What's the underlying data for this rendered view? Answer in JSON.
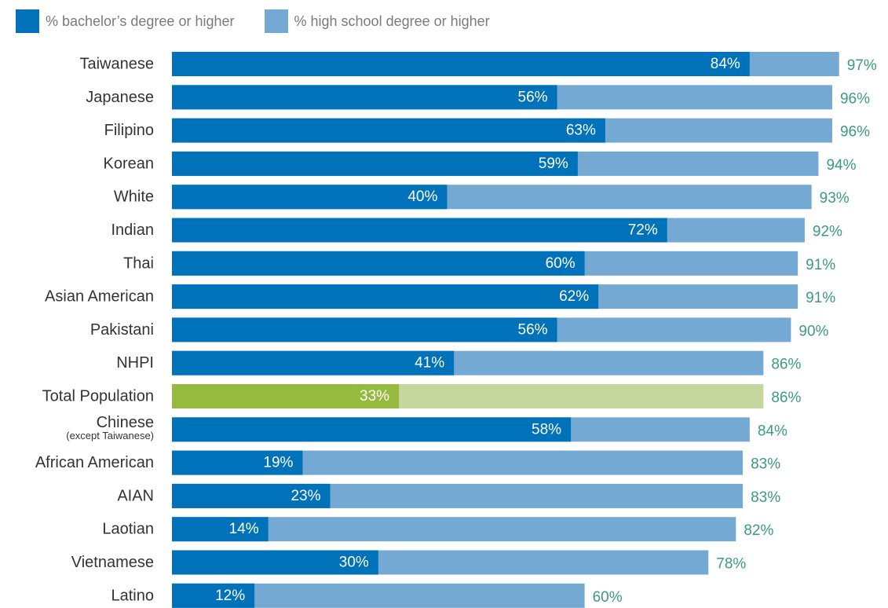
{
  "legend": {
    "items": [
      {
        "label": "% bachelor’s degree or higher",
        "color": "#0072BA"
      },
      {
        "label": "% high school degree or higher",
        "color": "#74A9D4"
      }
    ]
  },
  "colors": {
    "bachelor": "#0072BA",
    "highschool": "#74A9D4",
    "highlight_bachelor": "#95BA3D",
    "highlight_highschool": "#C5D79D",
    "outer_label": "#3A9A82"
  },
  "chart_data": {
    "type": "bar",
    "orientation": "horizontal",
    "stacking": "overlay",
    "highlight_category": "Total Population",
    "categories": [
      "Taiwanese",
      "Japanese",
      "Filipino",
      "Korean",
      "White",
      "Indian",
      "Thai",
      "Asian American",
      "Pakistani",
      "NHPI",
      "Total Population",
      "Chinese",
      "African American",
      "AIAN",
      "Laotian",
      "Vietnamese",
      "Latino"
    ],
    "category_sublabels": [
      "",
      "",
      "",
      "",
      "",
      "",
      "",
      "",
      "",
      "",
      "",
      "(except Taiwanese)",
      "",
      "",
      "",
      "",
      ""
    ],
    "series": [
      {
        "name": "% bachelor’s degree or higher",
        "values": [
          84,
          56,
          63,
          59,
          40,
          72,
          60,
          62,
          56,
          41,
          33,
          58,
          19,
          23,
          14,
          30,
          12
        ]
      },
      {
        "name": "% high school degree or higher",
        "values": [
          97,
          96,
          96,
          94,
          93,
          92,
          91,
          91,
          90,
          86,
          86,
          84,
          83,
          83,
          82,
          78,
          60
        ]
      }
    ],
    "value_suffix": "%",
    "xlim": [
      0,
      100
    ],
    "grid": false,
    "legend_position": "top-left"
  }
}
